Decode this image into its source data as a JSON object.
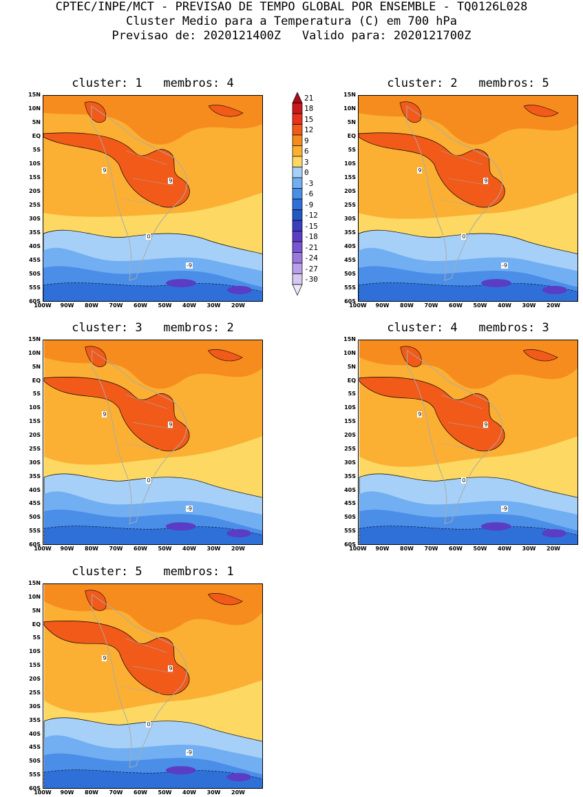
{
  "header": {
    "line1": "CPTEC/INPE/MCT - PREVISAO DE TEMPO GLOBAL POR ENSEMBLE - TQ0126L028",
    "line2": "Cluster Medio para a Temperatura (C) em 700 hPa",
    "line3": "Previsao de: 2020121400Z   Valido para: 2020121700Z"
  },
  "lat_labels": [
    "15N",
    "10N",
    "5N",
    "EQ",
    "5S",
    "10S",
    "15S",
    "20S",
    "25S",
    "30S",
    "35S",
    "40S",
    "45S",
    "50S",
    "55S",
    "60S"
  ],
  "lon_labels": [
    "100W",
    "90W",
    "80W",
    "70W",
    "60W",
    "50W",
    "40W",
    "30W",
    "20W"
  ],
  "panels": [
    {
      "title": "cluster: 1   membros: 4",
      "labels": {
        "zero": "0",
        "nine": "9",
        "neg": "-9"
      }
    },
    {
      "title": "cluster: 2   membros: 5",
      "labels": {
        "zero": "0",
        "nine": "9",
        "neg": "-9"
      }
    },
    {
      "title": "cluster: 3   membros: 2",
      "labels": {
        "zero": "0",
        "nine": "9",
        "neg": "-9"
      }
    },
    {
      "title": "cluster: 4   membros: 3",
      "labels": {
        "zero": "0",
        "nine": "9",
        "neg": "-9"
      }
    },
    {
      "title": "cluster: 5   membros: 1",
      "labels": {
        "zero": "0",
        "nine": "9",
        "neg": "-9"
      }
    }
  ],
  "colorbar": {
    "levels": [
      "21",
      "18",
      "15",
      "12",
      "9",
      "6",
      "3",
      "0",
      "-3",
      "-6",
      "-9",
      "-12",
      "-15",
      "-18",
      "-21",
      "-24",
      "-27",
      "-30"
    ],
    "colors": [
      "#a50f15",
      "#cb181d",
      "#e8321e",
      "#f25a1a",
      "#f78c1e",
      "#fbb034",
      "#fdd862",
      "#a6d0f7",
      "#72aef2",
      "#4a8ee8",
      "#2f6fd8",
      "#2357c4",
      "#3a3fbf",
      "#5b3cc4",
      "#7a55d0",
      "#9a78dc",
      "#b9a0e8",
      "#d6c8f2",
      "#efe8fb"
    ]
  }
}
